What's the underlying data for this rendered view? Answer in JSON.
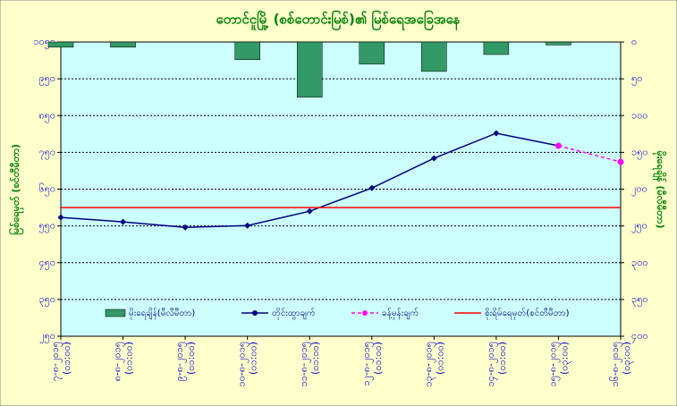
{
  "chart_data": {
    "type": "combo",
    "title": "တောင်ငူမြို့ (စစ်တောင်းမြစ်)၏ မြစ်ရေအခြေအနေ",
    "y_label": "မြစ်ရေမှတ် (စင်တီမီတာ)",
    "y2_label": "မိုးရေချိန် (မီလီမီတာ)",
    "categories": [
      "၇-၈-၂၀၁၅",
      "၈-၈-၂၀၁၅",
      "၉-၈-၂၀၁၅",
      "၁၀-၈-၂၀၁၅",
      "၁၁-၈-၂၀၁၅",
      "၁၂-၈-၂၀၁၅",
      "၁၃-၈-၂၀၁၅",
      "၁၄-၈-၂၀၁၅",
      "၁၅-၈-၂၀၁၅",
      "၁၆-၈-၂၀၁၅"
    ],
    "category_times": [
      "(၀၁:၀၀)",
      "(၀၁:၀၀)",
      "(၀၁:၀၀)",
      "(၀၁:၀၀)",
      "(၀၁:၀၀)",
      "(၀၁:၀၀)",
      "(၀၁:၀၀)",
      "(၀၁:၀၀)",
      "(၀၃:၀၀)",
      "(၀၃:၀၀)"
    ],
    "series": [
      {
        "name": "မိုးရေချိန်(မီလီမီတာ)",
        "kind": "bar",
        "axis": "y2",
        "color": "#339966",
        "values": [
          7,
          7,
          0,
          24,
          75,
          30,
          40,
          17,
          4,
          null
        ]
      },
      {
        "name": "တိုင်းထွာချက်",
        "kind": "line",
        "color": "#000080",
        "values": [
          573,
          561,
          546,
          551,
          590,
          653,
          734,
          802,
          768,
          null
        ]
      },
      {
        "name": "ခန့်မှန်းချက်",
        "kind": "dashed-line",
        "color": "#ff00ff",
        "values": [
          null,
          null,
          null,
          null,
          null,
          null,
          null,
          null,
          768,
          724
        ]
      }
    ],
    "reference_line": {
      "name": "စိုးရိမ်ရေမှတ်(စင်တီမီတာ)",
      "value": 600,
      "color": "#ff0000"
    },
    "ylim": [
      250,
      1050
    ],
    "yticks": [
      {
        "value": 1050,
        "label": "၁၀၅၀"
      },
      {
        "value": 950,
        "label": "၉၅၀"
      },
      {
        "value": 850,
        "label": "၈၅၀"
      },
      {
        "value": 750,
        "label": "၇၅၀"
      },
      {
        "value": 650,
        "label": "၆၅၀"
      },
      {
        "value": 550,
        "label": "၅၅၀"
      },
      {
        "value": 450,
        "label": "၄၅၀"
      },
      {
        "value": 350,
        "label": "၃၅၀"
      },
      {
        "value": 250,
        "label": "၂၅၀"
      }
    ],
    "y2lim": [
      0,
      400
    ],
    "y2_inverted": true,
    "y2ticks": [
      {
        "value": 0,
        "label": "၀"
      },
      {
        "value": 50,
        "label": "၅၀"
      },
      {
        "value": 100,
        "label": "၁၀၀"
      },
      {
        "value": 150,
        "label": "၁၅၀"
      },
      {
        "value": 200,
        "label": "၂၀၀"
      },
      {
        "value": 250,
        "label": "၂၅၀"
      },
      {
        "value": 300,
        "label": "၃၀၀"
      },
      {
        "value": 350,
        "label": "၃၅၀"
      },
      {
        "value": 400,
        "label": "၄၀၀"
      }
    ],
    "grid": true
  }
}
